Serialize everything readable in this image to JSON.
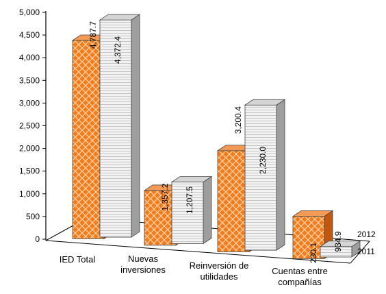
{
  "chart_data": {
    "type": "bar",
    "categories": [
      "IED Total",
      "Nuevas inversiones",
      "Reinversión de utilidades",
      "Cuentas entre compañías"
    ],
    "category_lines": [
      [
        "IED Total"
      ],
      [
        "Nuevas",
        "inversiones"
      ],
      [
        "Reinversión de",
        "utilidades"
      ],
      [
        "Cuentas entre",
        "compañías"
      ]
    ],
    "series": [
      {
        "name": "2011",
        "values": [
          4787.7,
          1357.2,
          3200.4,
          230.1
        ],
        "labels": [
          "4,787.7",
          "1,357.2",
          "3,200.4",
          "230.1"
        ],
        "color": "#ececec",
        "pattern": "horizontal-lines"
      },
      {
        "name": "2012",
        "values": [
          4372.4,
          1207.5,
          2230.0,
          934.9
        ],
        "labels": [
          "4,372.4",
          "1,207.5",
          "2,230.0",
          "934.9"
        ],
        "color": "#f07a1a",
        "pattern": "brick"
      }
    ],
    "ylim": [
      0,
      5000
    ],
    "yticks": [
      0,
      500,
      1000,
      1500,
      2000,
      2500,
      3000,
      3500,
      4000,
      4500,
      5000
    ],
    "ytick_labels": [
      "0",
      "500",
      "1,000",
      "1,500",
      "2,000",
      "2,500",
      "3,000",
      "3,500",
      "4,000",
      "4,500",
      "5,000"
    ],
    "depth_labels": [
      "2012",
      "2011"
    ],
    "title": "",
    "xlabel": "",
    "ylabel": "",
    "grid": false
  }
}
